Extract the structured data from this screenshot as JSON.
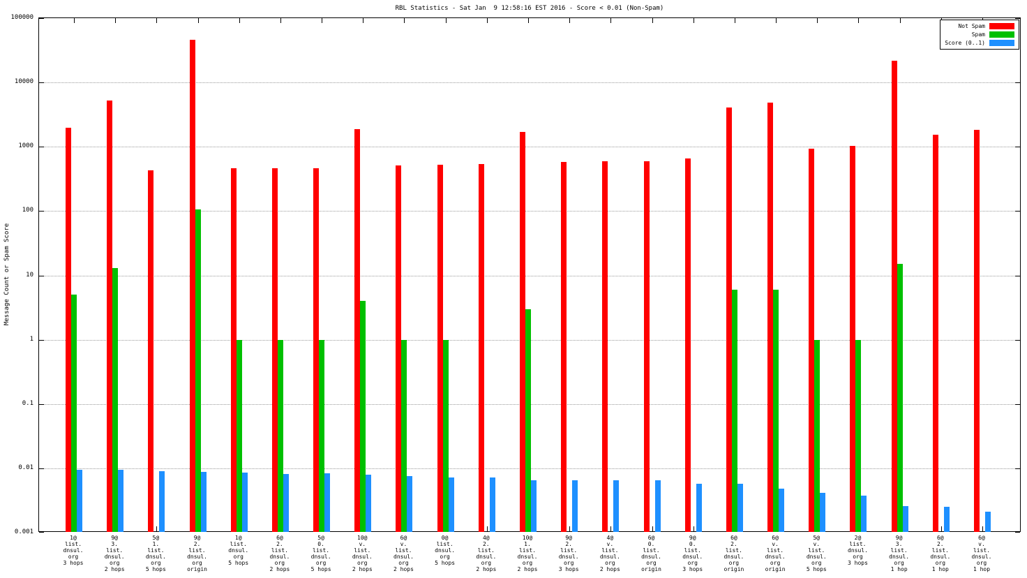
{
  "title": "RBL Statistics - Sat Jan  9 12:58:16 EST 2016 - Score < 0.01 (Non-Spam)",
  "chart_data": {
    "type": "bar",
    "scale": "log",
    "title": "RBL Statistics - Sat Jan  9 12:58:16 EST 2016 - Score < 0.01 (Non-Spam)",
    "xlabel": "",
    "ylabel": "Message Count or Spam Score",
    "ylim": [
      0.001,
      100000
    ],
    "yticks": [
      "100000",
      "10000",
      "1000",
      "100",
      "10",
      "1",
      "0.1",
      "0.01",
      "0.001"
    ],
    "grid": "horizontal-dotted",
    "legend_position": "top-right",
    "categories": [
      [
        "1@",
        "list.",
        "dnsul.",
        "org",
        "3 hops"
      ],
      [
        "9@",
        "3.",
        "list.",
        "dnsul.",
        "org",
        "2 hops"
      ],
      [
        "5@",
        "1.",
        "list.",
        "dnsul.",
        "org",
        "5 hops"
      ],
      [
        "9@",
        "2.",
        "list.",
        "dnsul.",
        "org",
        "origin"
      ],
      [
        "1@",
        "list.",
        "dnsul.",
        "org",
        "5 hops"
      ],
      [
        "6@",
        "2.",
        "list.",
        "dnsul.",
        "org",
        "2 hops"
      ],
      [
        "5@",
        "0.",
        "list.",
        "dnsul.",
        "org",
        "5 hops"
      ],
      [
        "10@",
        "v.",
        "list.",
        "dnsul.",
        "org",
        "2 hops"
      ],
      [
        "6@",
        "v.",
        "list.",
        "dnsul.",
        "org",
        "2 hops"
      ],
      [
        "0@",
        "list.",
        "dnsul.",
        "org",
        "5 hops"
      ],
      [
        "4@",
        "2.",
        "list.",
        "dnsul.",
        "org",
        "2 hops"
      ],
      [
        "10@",
        "1.",
        "list.",
        "dnsul.",
        "org",
        "2 hops"
      ],
      [
        "9@",
        "2.",
        "list.",
        "dnsul.",
        "org",
        "3 hops"
      ],
      [
        "4@",
        "v.",
        "list.",
        "dnsul.",
        "org",
        "2 hops"
      ],
      [
        "6@",
        "0.",
        "list.",
        "dnsul.",
        "org",
        "origin"
      ],
      [
        "9@",
        "0.",
        "list.",
        "dnsul.",
        "org",
        "3 hops"
      ],
      [
        "6@",
        "2.",
        "list.",
        "dnsul.",
        "org",
        "origin"
      ],
      [
        "6@",
        "v.",
        "list.",
        "dnsul.",
        "org",
        "origin"
      ],
      [
        "5@",
        "v.",
        "list.",
        "dnsul.",
        "org",
        "5 hops"
      ],
      [
        "2@",
        "list.",
        "dnsul.",
        "org",
        "3 hops"
      ],
      [
        "9@",
        "3.",
        "list.",
        "dnsul.",
        "org",
        "1 hop"
      ],
      [
        "6@",
        "2.",
        "list.",
        "dnsul.",
        "org",
        "1 hop"
      ],
      [
        "6@",
        "v.",
        "list.",
        "dnsul.",
        "org",
        "1 hop"
      ]
    ],
    "series": [
      {
        "key": "not-spam",
        "name": "Not Spam",
        "color": "#ff0000",
        "values": [
          2000,
          5200,
          430,
          46000,
          460,
          465,
          465,
          1900,
          510,
          530,
          540,
          1700,
          580,
          590,
          600,
          660,
          4100,
          4800,
          930,
          1030,
          21500,
          1550,
          1850
        ]
      },
      {
        "key": "spam",
        "name": "Spam",
        "color": "#00c000",
        "values": [
          5,
          13,
          0,
          105,
          1,
          1,
          1,
          4,
          1,
          1,
          0,
          3,
          0,
          0,
          0,
          0,
          6,
          6,
          1,
          1,
          15,
          0,
          0
        ]
      },
      {
        "key": "score",
        "name": "Score (0..1)",
        "color": "#1e90ff",
        "values": [
          0.0095,
          0.0095,
          0.009,
          0.0088,
          0.0085,
          0.0082,
          0.0083,
          0.008,
          0.0075,
          0.0072,
          0.0072,
          0.0065,
          0.0065,
          0.0065,
          0.0065,
          0.0058,
          0.0057,
          0.0048,
          0.0042,
          0.0038,
          0.0026,
          0.0025,
          0.0021
        ]
      }
    ]
  }
}
